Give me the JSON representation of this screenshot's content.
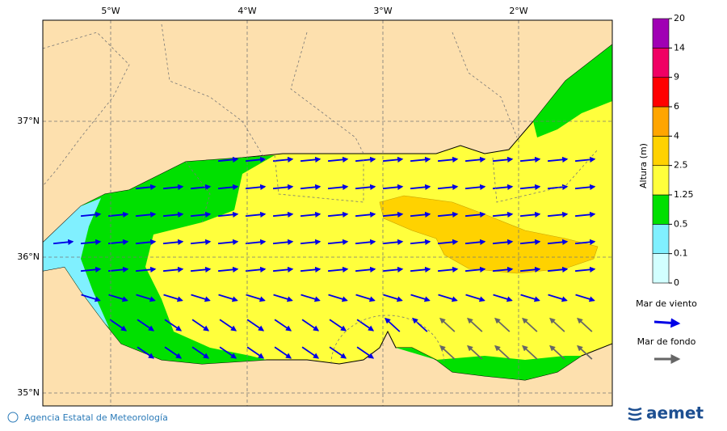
{
  "map": {
    "lon_labels": [
      "5°W",
      "4°W",
      "3°W",
      "2°W"
    ],
    "lat_labels": [
      "37°N",
      "36°N",
      "35°N"
    ],
    "legend": {
      "title": "Altura (m)",
      "levels": [
        0,
        0.1,
        0.5,
        1.25,
        2.5,
        4,
        6,
        9,
        14,
        20
      ],
      "colors": [
        "#d2ffff",
        "#80f0ff",
        "#00e000",
        "#ffff3c",
        "#ffd200",
        "#ffa500",
        "#ff0000",
        "#f00064",
        "#a000b4"
      ]
    },
    "arrow_legend": {
      "wind_sea": "Mar de viento",
      "swell": "Mar de fondo"
    },
    "footer": {
      "credit": "Agencia Estatal de Meteorología",
      "logo": "aemet"
    }
  }
}
